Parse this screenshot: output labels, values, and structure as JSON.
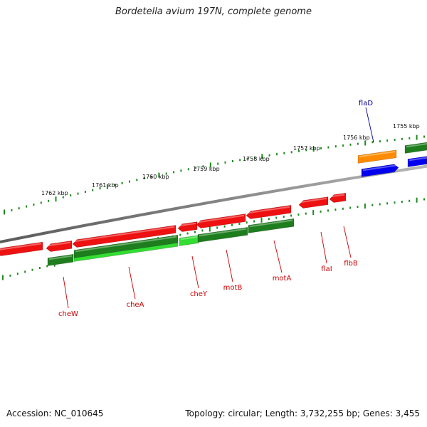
{
  "title": "Bordetella avium 197N, complete genome",
  "footer": {
    "accession": "Accession: NC_010645",
    "summary": "Topology: circular; Length: 3,732,255 bp; Genes: 3,455"
  },
  "colors": {
    "backbone": "#808080",
    "ticks": "#1f8a1f",
    "red_gene": "#ee1111",
    "dark_green_gene": "#1e7e1e",
    "light_green_gene": "#33dd33",
    "orange_gene": "#ff8c00",
    "blue_gene": "#0000ee",
    "red_label": "#cc0000",
    "blue_label": "#000099"
  },
  "ticks": [
    {
      "label": "1762 kbp"
    },
    {
      "label": "1761 kbp"
    },
    {
      "label": "1760 kbp"
    },
    {
      "label": "1759 kbp"
    },
    {
      "label": "1758 kbp"
    },
    {
      "label": "1757 kbp"
    },
    {
      "label": "1756 kbp"
    },
    {
      "label": "1755 kbp"
    }
  ],
  "gene_labels": [
    {
      "name": "cheW",
      "color": "red"
    },
    {
      "name": "cheA",
      "color": "red"
    },
    {
      "name": "cheY",
      "color": "red"
    },
    {
      "name": "motB",
      "color": "red"
    },
    {
      "name": "motA",
      "color": "red"
    },
    {
      "name": "flaI",
      "color": "red"
    },
    {
      "name": "flbB",
      "color": "red"
    },
    {
      "name": "flaD",
      "color": "blue"
    }
  ]
}
